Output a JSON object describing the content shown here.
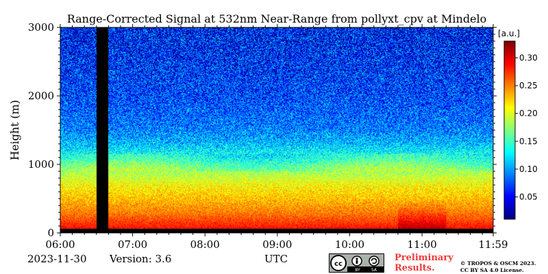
{
  "chart_data": {
    "type": "heatmap",
    "title": "Range-Corrected Signal at 532nm Near-Range from pollyxt_cpv at Mindelo",
    "ylabel": "Height (m)",
    "xlabel": "UTC",
    "x_ticks": [
      "06:00",
      "07:00",
      "08:00",
      "09:00",
      "10:00",
      "11:00",
      "11:59"
    ],
    "x_range": [
      "06:00",
      "11:59"
    ],
    "y_ticks": [
      0,
      1000,
      2000,
      3000
    ],
    "ylim": [
      0,
      3000
    ],
    "colorbar": {
      "label": "[a.u.]",
      "range": [
        0.01,
        0.33
      ],
      "ticks": [
        "0.05",
        "0.10",
        "0.15",
        "0.20",
        "0.25",
        "0.30"
      ],
      "colormap": "jet"
    },
    "no_data_gap": [
      "06:30",
      "06:40"
    ],
    "profile_estimate": {
      "heights_m": [
        0,
        100,
        300,
        500,
        700,
        900,
        1100,
        1300,
        1500,
        2000,
        2500,
        3000
      ],
      "signal": [
        0.3,
        0.28,
        0.25,
        0.23,
        0.21,
        0.18,
        0.14,
        0.11,
        0.09,
        0.07,
        0.06,
        0.05
      ]
    }
  },
  "footer": {
    "date": "2023-11-30",
    "version": "Version: 3.6",
    "preliminary": [
      "Preliminary",
      "Results."
    ],
    "copyright": [
      "© TROPOS & OSCM 2023.",
      "CC BY SA 4.0 License."
    ]
  },
  "license_badge": {
    "left": "cc",
    "by": "BY",
    "sa": "SA"
  }
}
